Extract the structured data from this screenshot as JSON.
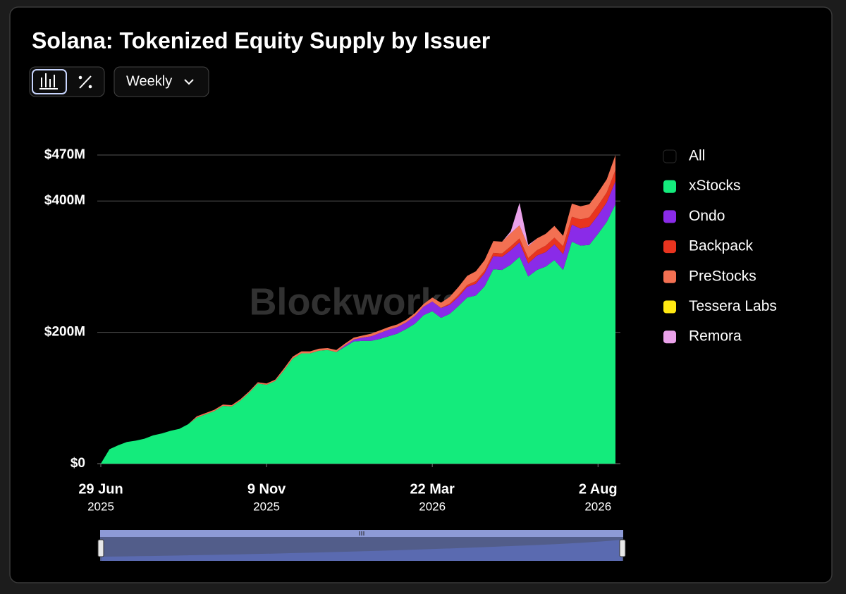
{
  "chart_data": {
    "type": "stacked_area",
    "title": "Solana: Tokenized Equity Supply by Issuer",
    "controls": {
      "interval": "Weekly"
    },
    "watermark": "Blockworks",
    "total_label": "All",
    "total_color": "#000000",
    "x": [
      "2025-06-29",
      "2025-07-06",
      "2025-07-13",
      "2025-07-20",
      "2025-07-27",
      "2025-08-03",
      "2025-08-10",
      "2025-08-17",
      "2025-08-24",
      "2025-08-31",
      "2025-09-07",
      "2025-09-14",
      "2025-09-21",
      "2025-09-28",
      "2025-10-05",
      "2025-10-12",
      "2025-10-19",
      "2025-10-26",
      "2025-11-02",
      "2025-11-09",
      "2025-11-16",
      "2025-11-23",
      "2025-11-30",
      "2025-12-07",
      "2025-12-14",
      "2025-12-21",
      "2025-12-28",
      "2026-01-04",
      "2026-01-11",
      "2026-01-18",
      "2026-01-25",
      "2026-02-01",
      "2026-02-08",
      "2026-02-15",
      "2026-02-22",
      "2026-03-01",
      "2026-03-08",
      "2026-03-15",
      "2026-03-22",
      "2026-03-29",
      "2026-04-05",
      "2026-04-12",
      "2026-04-19",
      "2026-04-26",
      "2026-05-03",
      "2026-05-10",
      "2026-05-17",
      "2026-05-24",
      "2026-05-31",
      "2026-06-07",
      "2026-06-14",
      "2026-06-21",
      "2026-06-28",
      "2026-07-05",
      "2026-07-12",
      "2026-07-19",
      "2026-07-26",
      "2026-08-02",
      "2026-08-09",
      "2026-08-16"
    ],
    "xlim": [
      "2025-06-29",
      "2026-08-16"
    ],
    "xticks": [
      {
        "value": "2025-06-29",
        "label": "29 Jun",
        "year": "2025"
      },
      {
        "value": "2025-11-09",
        "label": "9 Nov",
        "year": "2025"
      },
      {
        "value": "2026-03-22",
        "label": "22 Mar",
        "year": "2026"
      },
      {
        "value": "2026-08-02",
        "label": "2 Aug",
        "year": "2026"
      }
    ],
    "ylim": [
      0,
      470
    ],
    "yticks": [
      {
        "value": 0,
        "label": "$0"
      },
      {
        "value": 200,
        "label": "$200M"
      },
      {
        "value": 400,
        "label": "$400M"
      },
      {
        "value": 470,
        "label": "$470M"
      }
    ],
    "grid": true,
    "series": [
      {
        "name": "xStocks",
        "color": "#14eb7c",
        "values": [
          0,
          22,
          28,
          33,
          35,
          38,
          43,
          46,
          50,
          53,
          60,
          70,
          75,
          80,
          88,
          87,
          96,
          108,
          122,
          120,
          126,
          142,
          160,
          168,
          168,
          172,
          173,
          170,
          178,
          186,
          187,
          187,
          190,
          194,
          198,
          205,
          213,
          226,
          232,
          222,
          228,
          240,
          253,
          256,
          270,
          296,
          295,
          303,
          315,
          285,
          295,
          300,
          310,
          295,
          338,
          332,
          333,
          350,
          368,
          395
        ]
      },
      {
        "name": "Ondo",
        "color": "#8a2be8",
        "values": [
          0,
          0,
          0,
          0,
          0,
          0,
          0,
          0,
          0,
          0,
          0,
          0,
          0,
          0,
          0,
          0,
          0,
          0,
          0,
          0,
          0,
          0,
          0,
          0,
          0,
          0,
          0,
          0,
          2,
          3,
          5,
          7,
          9,
          10,
          10,
          10,
          12,
          13,
          15,
          15,
          14,
          14,
          16,
          18,
          20,
          20,
          20,
          22,
          22,
          20,
          22,
          22,
          24,
          24,
          26,
          26,
          28,
          28,
          30,
          35
        ]
      },
      {
        "name": "Backpack",
        "color": "#e8341f",
        "values": [
          0,
          0,
          0,
          0,
          0,
          0,
          0,
          0,
          0,
          0,
          0,
          0,
          0,
          0,
          0,
          0,
          0,
          0,
          0,
          0,
          0,
          0,
          0,
          0,
          0,
          0,
          0,
          0,
          0,
          0,
          0,
          0,
          0,
          0,
          0,
          0,
          0,
          0,
          0,
          0,
          2,
          3,
          3,
          4,
          4,
          5,
          5,
          6,
          6,
          8,
          8,
          10,
          10,
          12,
          12,
          14,
          14,
          15,
          15,
          17
        ]
      },
      {
        "name": "PreStocks",
        "color": "#f37052",
        "values": [
          0,
          0,
          0,
          0,
          0,
          0,
          0,
          0,
          0,
          0,
          0,
          2,
          2,
          2,
          2,
          2,
          2,
          2,
          2,
          2,
          2,
          3,
          3,
          3,
          3,
          3,
          3,
          3,
          3,
          3,
          3,
          4,
          4,
          4,
          4,
          4,
          4,
          4,
          6,
          8,
          10,
          12,
          14,
          15,
          16,
          18,
          18,
          20,
          20,
          18,
          18,
          18,
          18,
          16,
          20,
          20,
          20,
          20,
          20,
          23
        ]
      },
      {
        "name": "Tessera Labs",
        "color": "#ffe812",
        "values": [
          0,
          0,
          0,
          0,
          0,
          0,
          0,
          0,
          0,
          0,
          0,
          0,
          0,
          0,
          0,
          0,
          0,
          0,
          0,
          0,
          0,
          0,
          0,
          0,
          0,
          0,
          0,
          0,
          0,
          0,
          0,
          0,
          0,
          0,
          0,
          0,
          0,
          0,
          0,
          0,
          0,
          0,
          0,
          0,
          0,
          0,
          0,
          0,
          0,
          0,
          0,
          0,
          0,
          0,
          0,
          0,
          0,
          0,
          0,
          0
        ]
      },
      {
        "name": "Remora",
        "color": "#eaa2ea",
        "values": [
          0,
          0,
          0,
          0,
          0,
          0,
          0,
          0,
          0,
          0,
          0,
          0,
          0,
          0,
          0,
          0,
          0,
          0,
          0,
          0,
          0,
          0,
          0,
          0,
          0,
          0,
          0,
          0,
          0,
          0,
          0,
          0,
          0,
          0,
          0,
          0,
          0,
          0,
          0,
          0,
          0,
          0,
          0,
          0,
          0,
          0,
          0,
          3,
          34,
          2,
          0,
          0,
          0,
          0,
          0,
          0,
          0,
          0,
          0,
          0
        ]
      }
    ]
  }
}
